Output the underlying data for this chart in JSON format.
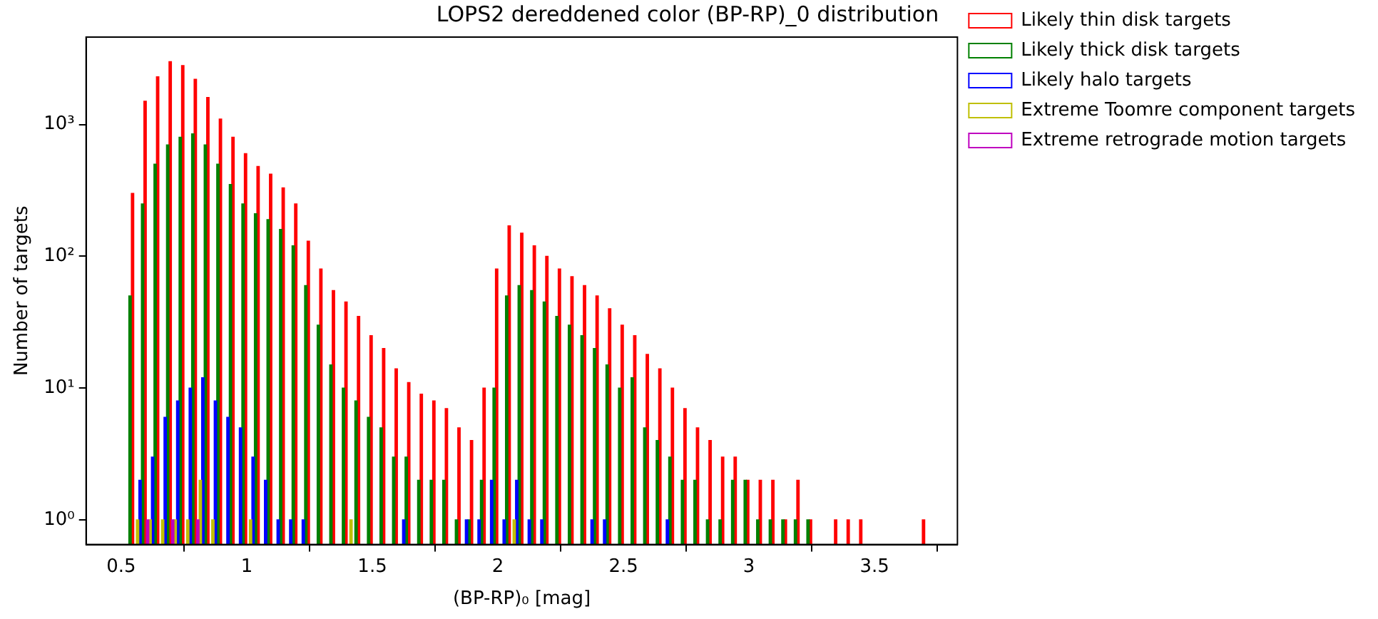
{
  "chart_data": {
    "type": "histogram",
    "title": "LOPS2 dereddened color (BP-RP)_0 distribution",
    "xlabel": "(BP-RP)₀ [mag]",
    "ylabel": "Number of targets",
    "bins": [
      0.5,
      0.55,
      0.6,
      0.65,
      0.7,
      0.75,
      0.8,
      0.85,
      0.9,
      0.95,
      1.0,
      1.05,
      1.1,
      1.15,
      1.2,
      1.25,
      1.3,
      1.35,
      1.4,
      1.45,
      1.5,
      1.55,
      1.6,
      1.65,
      1.7,
      1.75,
      1.8,
      1.85,
      1.9,
      1.95,
      2.0,
      2.05,
      2.1,
      2.15,
      2.2,
      2.25,
      2.3,
      2.35,
      2.4,
      2.45,
      2.5,
      2.55,
      2.6,
      2.65,
      2.7,
      2.75,
      2.8,
      2.85,
      2.9,
      2.95,
      3.0,
      3.05,
      3.1,
      3.15,
      3.2,
      3.25,
      3.3,
      3.35,
      3.4,
      3.45,
      3.5,
      3.55,
      3.6,
      3.65,
      3.7
    ],
    "series": [
      {
        "name": "Likely thin disk targets",
        "color": "#ff0000",
        "values": [
          300,
          1500,
          2300,
          3000,
          2800,
          2200,
          1600,
          1100,
          800,
          600,
          480,
          420,
          330,
          250,
          130,
          80,
          55,
          45,
          35,
          25,
          20,
          14,
          11,
          9,
          8,
          7,
          5,
          4,
          10,
          80,
          170,
          150,
          120,
          100,
          80,
          70,
          60,
          50,
          40,
          30,
          25,
          18,
          14,
          10,
          7,
          5,
          4,
          3,
          3,
          2,
          2,
          2,
          1,
          2,
          1,
          null,
          1,
          1,
          1,
          null,
          null,
          null,
          null,
          1
        ]
      },
      {
        "name": "Likely thick disk targets",
        "color": "#008000",
        "values": [
          50,
          250,
          500,
          700,
          800,
          850,
          700,
          500,
          350,
          250,
          210,
          190,
          160,
          120,
          60,
          30,
          15,
          10,
          8,
          6,
          5,
          3,
          3,
          2,
          2,
          2,
          1,
          1,
          2,
          10,
          50,
          60,
          55,
          45,
          35,
          30,
          25,
          20,
          15,
          10,
          12,
          5,
          4,
          3,
          2,
          2,
          1,
          1,
          2,
          2,
          1,
          1,
          1,
          1,
          1,
          null,
          null,
          null,
          null,
          null,
          null,
          null,
          null,
          null
        ]
      },
      {
        "name": "Likely halo targets",
        "color": "#0000ff",
        "values": [
          null,
          2,
          3,
          6,
          8,
          10,
          12,
          8,
          6,
          5,
          3,
          2,
          1,
          1,
          1,
          null,
          null,
          null,
          null,
          null,
          null,
          null,
          1,
          null,
          null,
          null,
          null,
          1,
          1,
          2,
          1,
          2,
          1,
          1,
          null,
          null,
          null,
          1,
          1,
          null,
          null,
          null,
          null,
          1,
          null,
          null,
          null,
          null,
          null,
          null,
          null,
          null,
          null,
          null,
          null,
          null,
          null,
          null,
          null,
          null,
          null,
          null,
          null,
          null
        ]
      },
      {
        "name": "Extreme Toomre component targets",
        "color": "#bfbf00",
        "values": [
          null,
          1,
          1,
          1,
          1,
          1,
          2,
          1,
          null,
          null,
          1,
          null,
          null,
          null,
          null,
          null,
          null,
          null,
          1,
          null,
          null,
          null,
          null,
          null,
          null,
          null,
          null,
          null,
          null,
          null,
          null,
          1,
          null,
          null,
          null,
          null,
          null,
          null,
          null,
          null,
          null,
          null,
          null,
          null,
          null,
          null,
          null,
          null,
          null,
          null,
          null,
          null,
          null,
          null,
          null,
          null,
          null,
          null,
          null,
          null,
          null,
          null,
          null,
          null
        ]
      },
      {
        "name": "Extreme retrograde motion targets",
        "color": "#bf00bf",
        "values": [
          null,
          null,
          1,
          null,
          1,
          null,
          1,
          null,
          null,
          null,
          null,
          null,
          null,
          null,
          null,
          null,
          null,
          null,
          null,
          null,
          null,
          null,
          null,
          null,
          null,
          null,
          null,
          null,
          null,
          null,
          null,
          null,
          null,
          null,
          null,
          null,
          null,
          null,
          null,
          null,
          null,
          null,
          null,
          null,
          null,
          null,
          null,
          null,
          null,
          null,
          null,
          null,
          null,
          null,
          null,
          null,
          null,
          null,
          null,
          null,
          null,
          null,
          null,
          null
        ]
      }
    ],
    "log": "y",
    "xlim": [
      0.36,
      3.83
    ],
    "ylim": [
      0.65,
      4600
    ],
    "xticks": [
      0.5,
      1.0,
      1.5,
      2.0,
      2.5,
      3.0,
      3.5
    ],
    "yticks": [
      {
        "value": 1,
        "label": "10⁰"
      },
      {
        "value": 10,
        "label": "10¹"
      },
      {
        "value": 100,
        "label": "10²"
      },
      {
        "value": 1000,
        "label": "10³"
      }
    ],
    "grid": false,
    "legend": "top right"
  }
}
